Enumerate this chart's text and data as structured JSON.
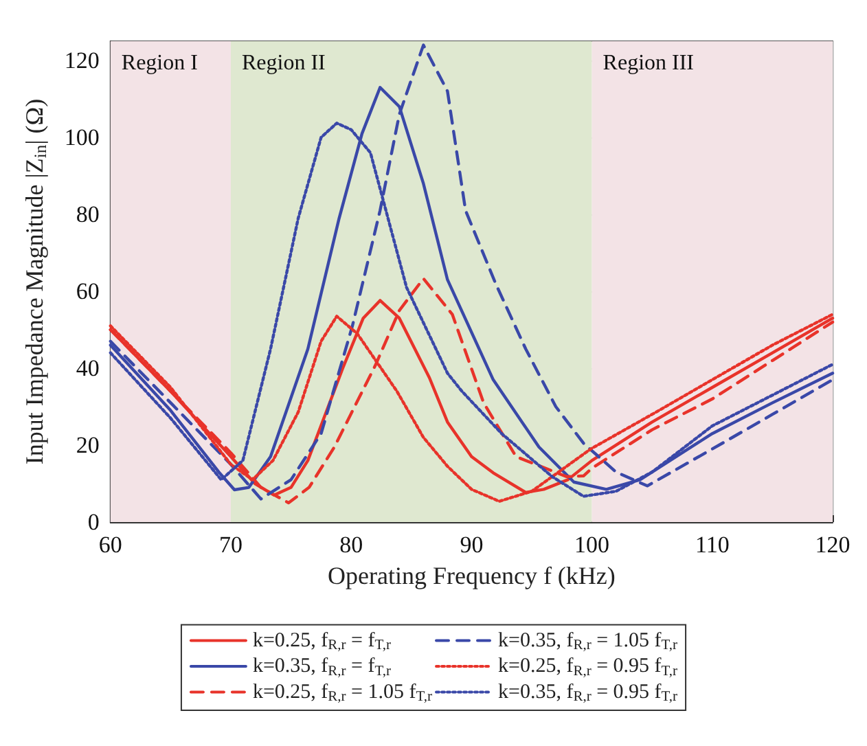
{
  "chart_data": {
    "type": "line",
    "xlabel": "Operating Frequency f (kHz)",
    "ylabel": "Input Impedance Magnitude |Z$_{in}$| (Ω)",
    "xlim": [
      60,
      120
    ],
    "xticks": [
      60,
      70,
      80,
      90,
      100,
      110,
      120
    ],
    "ylim": [
      0,
      125
    ],
    "yticks": [
      0,
      20,
      40,
      60,
      80,
      100,
      120
    ],
    "grid": true,
    "legend": "bottom",
    "marker": "none",
    "bands": [
      {
        "axis": "x",
        "from": 60,
        "to": 70,
        "label": "Region I",
        "color": "#f3e3e6"
      },
      {
        "axis": "x",
        "from": 70,
        "to": 100,
        "label": "Region II",
        "color": "#dfe8d0"
      },
      {
        "axis": "x",
        "from": 100,
        "to": 120,
        "label": "Region III",
        "color": "#f3e3e6"
      }
    ],
    "series": [
      {
        "name": "k=0.25, f$_{R,r}$ = f$_{T,r}$",
        "color": "#e8332a",
        "line_style": "solid",
        "x": [
          60,
          65,
          70,
          72,
          73.6,
          75,
          76.4,
          79.3,
          81,
          82.4,
          84,
          86.5,
          88,
          90,
          91.8,
          94.5,
          96,
          98,
          100,
          105,
          110,
          115,
          120
        ],
        "values": [
          50,
          34,
          17,
          10,
          7,
          9,
          16,
          40,
          53,
          57.6,
          53,
          37.5,
          26,
          17,
          12.8,
          7.7,
          8.5,
          11,
          16,
          26,
          35,
          44,
          53
        ]
      },
      {
        "name": "k=0.35, f$_{R,r}$ = f$_{T,r}$",
        "color": "#3a48a8",
        "line_style": "solid",
        "x": [
          60,
          65,
          69,
          70.3,
          71.5,
          73.3,
          76.4,
          79,
          80.9,
          82.4,
          84,
          86,
          88,
          91.8,
          95.6,
          98.5,
          101.2,
          104,
          110,
          115,
          120
        ],
        "values": [
          46,
          29,
          13,
          8.4,
          9,
          17,
          45,
          79,
          101,
          113,
          108,
          88,
          63,
          37,
          19.5,
          10.4,
          8.5,
          11,
          23,
          31,
          38.7
        ]
      },
      {
        "name": "k=0.25, f$_{R,r}$ = 1.05 f$_{T,r}$",
        "color": "#e8332a",
        "line_style": "dashed",
        "x": [
          60,
          65,
          70,
          72.5,
          74.8,
          76.5,
          78.6,
          82,
          84,
          86,
          88.4,
          91,
          93.7,
          97.9,
          99.3,
          100,
          105,
          110,
          115,
          120
        ],
        "values": [
          50,
          34,
          18,
          9,
          5,
          9,
          19.5,
          40.7,
          55,
          63.3,
          54,
          31,
          17,
          11.8,
          12,
          14,
          24,
          32,
          42,
          52
        ]
      },
      {
        "name": "k=0.35, f$_{R,r}$ = 1.05 f$_{T,r}$",
        "color": "#3a48a8",
        "line_style": "dashed",
        "x": [
          60,
          65,
          70,
          72.5,
          75,
          77.5,
          80.1,
          82.4,
          84,
          86,
          88,
          89.5,
          92,
          94.5,
          97,
          99.3,
          102,
          104.6,
          110,
          115,
          120
        ],
        "values": [
          47,
          31,
          15,
          6,
          11,
          23,
          51,
          81,
          106,
          124,
          112,
          81,
          62,
          45,
          30,
          20.5,
          13,
          9.4,
          19,
          28,
          37
        ]
      },
      {
        "name": "k=0.25, f$_{R,r}$ = 0.95 f$_{T,r}$",
        "color": "#e8332a",
        "line_style": "dotted",
        "x": [
          60,
          65,
          70,
          71.8,
          73.5,
          75.6,
          77.5,
          78.8,
          80.5,
          83.8,
          86,
          88,
          90,
          92.3,
          95,
          99.9,
          105,
          110,
          115,
          120
        ],
        "values": [
          51,
          35,
          15,
          11,
          16,
          28.6,
          47,
          53.5,
          49,
          34,
          22,
          14.5,
          8.5,
          5.4,
          8,
          19,
          28,
          37,
          46,
          54
        ]
      },
      {
        "name": "k=0.35, f$_{R,r}$ = 0.95 f$_{T,r}$",
        "color": "#3a48a8",
        "line_style": "dotted",
        "x": [
          60,
          65,
          69.2,
          71,
          73.3,
          75.6,
          77.5,
          78.8,
          80,
          81.6,
          84.6,
          88,
          89.2,
          92.5,
          96.7,
          99.3,
          102,
          105,
          110,
          115,
          120
        ],
        "values": [
          44,
          27,
          11,
          16,
          45,
          79,
          100,
          103.7,
          102,
          96,
          61,
          38.7,
          34,
          23,
          11.8,
          6.7,
          8,
          13,
          25,
          33,
          41
        ]
      }
    ]
  }
}
